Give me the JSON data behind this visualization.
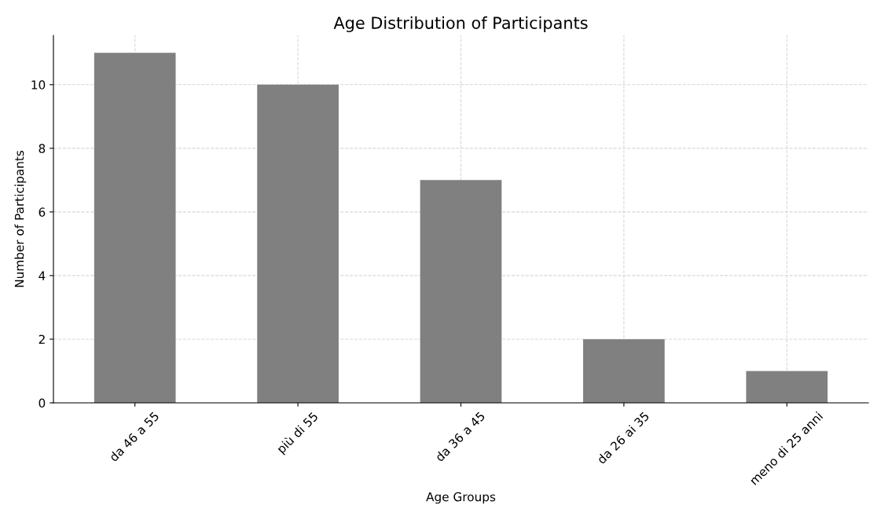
{
  "chart_data": {
    "type": "bar",
    "title": "Age Distribution of Participants",
    "xlabel": "Age Groups",
    "ylabel": "Number of Participants",
    "categories": [
      "da 46 a 55",
      "più di 55",
      "da 36 a 45",
      "da 26 ai 35",
      "meno di 25 anni"
    ],
    "values": [
      11,
      10,
      7,
      2,
      1
    ],
    "color": "#808080",
    "ylim": [
      0,
      11.55
    ],
    "yticks": [
      0,
      2,
      4,
      6,
      8,
      10
    ],
    "grid": true,
    "legend": false
  }
}
